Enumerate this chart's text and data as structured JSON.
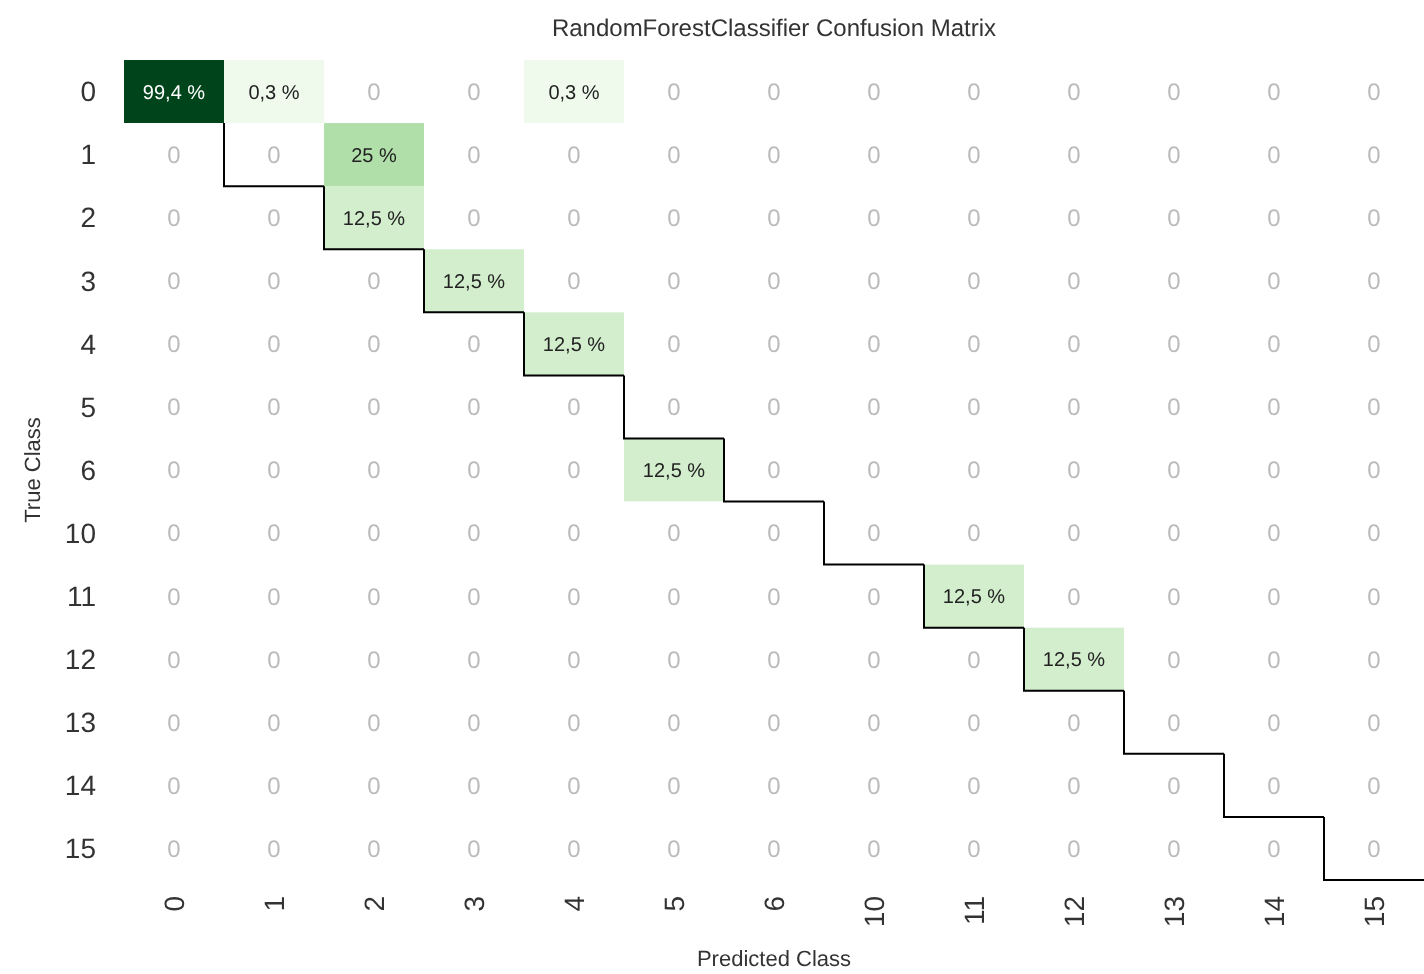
{
  "chart_data": {
    "type": "heatmap",
    "title": "RandomForestClassifier Confusion Matrix",
    "xlabel": "Predicted Class",
    "ylabel": "True Class",
    "categories": [
      "0",
      "1",
      "2",
      "3",
      "4",
      "5",
      "6",
      "10",
      "11",
      "12",
      "13",
      "14",
      "15"
    ],
    "y_categories": [
      "0",
      "1",
      "2",
      "3",
      "4",
      "5",
      "6",
      "10",
      "11",
      "12",
      "13",
      "14",
      "15"
    ],
    "cells": [
      [
        99.4,
        0.3,
        0,
        0,
        0.3,
        0,
        0,
        0,
        0,
        0,
        0,
        0,
        0
      ],
      [
        0,
        0,
        25,
        0,
        0,
        0,
        0,
        0,
        0,
        0,
        0,
        0,
        0
      ],
      [
        0,
        0,
        12.5,
        0,
        0,
        0,
        0,
        0,
        0,
        0,
        0,
        0,
        0
      ],
      [
        0,
        0,
        0,
        12.5,
        0,
        0,
        0,
        0,
        0,
        0,
        0,
        0,
        0
      ],
      [
        0,
        0,
        0,
        0,
        12.5,
        0,
        0,
        0,
        0,
        0,
        0,
        0,
        0
      ],
      [
        0,
        0,
        0,
        0,
        0,
        0,
        0,
        0,
        0,
        0,
        0,
        0,
        0
      ],
      [
        0,
        0,
        0,
        0,
        0,
        12.5,
        0,
        0,
        0,
        0,
        0,
        0,
        0
      ],
      [
        0,
        0,
        0,
        0,
        0,
        0,
        0,
        0,
        0,
        0,
        0,
        0,
        0
      ],
      [
        0,
        0,
        0,
        0,
        0,
        0,
        0,
        0,
        12.5,
        0,
        0,
        0,
        0
      ],
      [
        0,
        0,
        0,
        0,
        0,
        0,
        0,
        0,
        0,
        12.5,
        0,
        0,
        0
      ],
      [
        0,
        0,
        0,
        0,
        0,
        0,
        0,
        0,
        0,
        0,
        0,
        0,
        0
      ],
      [
        0,
        0,
        0,
        0,
        0,
        0,
        0,
        0,
        0,
        0,
        0,
        0,
        0
      ],
      [
        0,
        0,
        0,
        0,
        0,
        0,
        0,
        0,
        0,
        0,
        0,
        0,
        0
      ]
    ],
    "cell_labels": [
      [
        "99,4 %",
        "0,3 %",
        "0",
        "0",
        "0,3 %",
        "0",
        "0",
        "0",
        "0",
        "0",
        "0",
        "0",
        "0"
      ],
      [
        "0",
        "0",
        "25 %",
        "0",
        "0",
        "0",
        "0",
        "0",
        "0",
        "0",
        "0",
        "0",
        "0"
      ],
      [
        "0",
        "0",
        "12,5 %",
        "0",
        "0",
        "0",
        "0",
        "0",
        "0",
        "0",
        "0",
        "0",
        "0"
      ],
      [
        "0",
        "0",
        "0",
        "12,5 %",
        "0",
        "0",
        "0",
        "0",
        "0",
        "0",
        "0",
        "0",
        "0"
      ],
      [
        "0",
        "0",
        "0",
        "0",
        "12,5 %",
        "0",
        "0",
        "0",
        "0",
        "0",
        "0",
        "0",
        "0"
      ],
      [
        "0",
        "0",
        "0",
        "0",
        "0",
        "0",
        "0",
        "0",
        "0",
        "0",
        "0",
        "0",
        "0"
      ],
      [
        "0",
        "0",
        "0",
        "0",
        "0",
        "12,5 %",
        "0",
        "0",
        "0",
        "0",
        "0",
        "0",
        "0"
      ],
      [
        "0",
        "0",
        "0",
        "0",
        "0",
        "0",
        "0",
        "0",
        "0",
        "0",
        "0",
        "0",
        "0"
      ],
      [
        "0",
        "0",
        "0",
        "0",
        "0",
        "0",
        "0",
        "0",
        "12,5 %",
        "0",
        "0",
        "0",
        "0"
      ],
      [
        "0",
        "0",
        "0",
        "0",
        "0",
        "0",
        "0",
        "0",
        "0",
        "12,5 %",
        "0",
        "0",
        "0"
      ],
      [
        "0",
        "0",
        "0",
        "0",
        "0",
        "0",
        "0",
        "0",
        "0",
        "0",
        "0",
        "0",
        "0"
      ],
      [
        "0",
        "0",
        "0",
        "0",
        "0",
        "0",
        "0",
        "0",
        "0",
        "0",
        "0",
        "0",
        "0"
      ],
      [
        "0",
        "0",
        "0",
        "0",
        "0",
        "0",
        "0",
        "0",
        "0",
        "0",
        "0",
        "0",
        "0"
      ]
    ]
  }
}
